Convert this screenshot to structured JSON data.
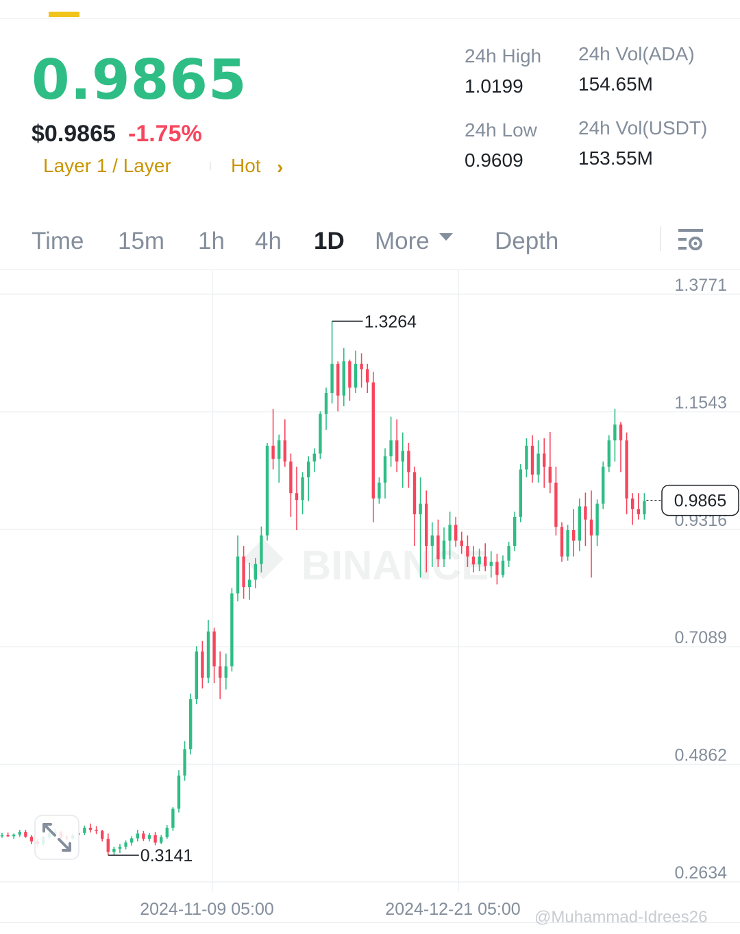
{
  "ticker": {
    "last_price": "0.9865",
    "usd_price": "$0.9865",
    "change_pct": "-1.75%",
    "tags": [
      "Layer 1 / Layer",
      "Hot"
    ],
    "colors": {
      "up": "#2ebd85",
      "down": "#f6465d",
      "tag": "#c99400",
      "accent": "#f0c41b"
    }
  },
  "stats": {
    "high_label": "24h High",
    "high_value": "1.0199",
    "low_label": "24h Low",
    "low_value": "0.9609",
    "vol_base_label": "24h Vol(ADA)",
    "vol_base_value": "154.65M",
    "vol_quote_label": "24h Vol(USDT)",
    "vol_quote_value": "153.55M"
  },
  "tabs": {
    "time": "Time",
    "m15": "15m",
    "h1": "1h",
    "h4": "4h",
    "d1": "1D",
    "more": "More",
    "depth": "Depth",
    "active": "1D",
    "settings_icon": "chart-settings-icon"
  },
  "chart_data": {
    "type": "candlestick",
    "interval": "1D",
    "y_ticks": [
      "1.3771",
      "1.1543",
      "0.9316",
      "0.7089",
      "0.4862",
      "0.2634"
    ],
    "ylim": [
      0.2634,
      1.3771
    ],
    "x_ticks": [
      "2024-11-09 05:00",
      "2024-12-21 05:00"
    ],
    "max_label": "1.3264",
    "min_label": "0.3141",
    "last_price_label": "0.9865",
    "grid": true,
    "watermark": "BINANCE",
    "candles": [
      [
        0.351,
        0.356,
        0.347,
        0.352
      ],
      [
        0.352,
        0.357,
        0.348,
        0.35
      ],
      [
        0.35,
        0.355,
        0.345,
        0.353
      ],
      [
        0.353,
        0.362,
        0.349,
        0.358
      ],
      [
        0.358,
        0.362,
        0.347,
        0.349
      ],
      [
        0.349,
        0.352,
        0.335,
        0.34
      ],
      [
        0.34,
        0.345,
        0.33,
        0.335
      ],
      [
        0.335,
        0.35,
        0.332,
        0.348
      ],
      [
        0.348,
        0.36,
        0.344,
        0.355
      ],
      [
        0.355,
        0.364,
        0.35,
        0.358
      ],
      [
        0.358,
        0.36,
        0.344,
        0.348
      ],
      [
        0.348,
        0.352,
        0.342,
        0.346
      ],
      [
        0.346,
        0.355,
        0.343,
        0.352
      ],
      [
        0.352,
        0.36,
        0.348,
        0.356
      ],
      [
        0.356,
        0.37,
        0.352,
        0.366
      ],
      [
        0.366,
        0.374,
        0.357,
        0.362
      ],
      [
        0.362,
        0.369,
        0.354,
        0.36
      ],
      [
        0.36,
        0.362,
        0.34,
        0.345
      ],
      [
        0.345,
        0.355,
        0.314,
        0.32
      ],
      [
        0.32,
        0.33,
        0.314,
        0.326
      ],
      [
        0.326,
        0.335,
        0.318,
        0.33
      ],
      [
        0.33,
        0.342,
        0.325,
        0.338
      ],
      [
        0.338,
        0.35,
        0.332,
        0.346
      ],
      [
        0.346,
        0.362,
        0.34,
        0.355
      ],
      [
        0.355,
        0.36,
        0.341,
        0.345
      ],
      [
        0.345,
        0.356,
        0.34,
        0.352
      ],
      [
        0.352,
        0.358,
        0.333,
        0.338
      ],
      [
        0.338,
        0.352,
        0.335,
        0.348
      ],
      [
        0.348,
        0.371,
        0.345,
        0.366
      ],
      [
        0.366,
        0.405,
        0.36,
        0.402
      ],
      [
        0.402,
        0.475,
        0.395,
        0.465
      ],
      [
        0.465,
        0.53,
        0.455,
        0.515
      ],
      [
        0.515,
        0.62,
        0.505,
        0.61
      ],
      [
        0.61,
        0.71,
        0.6,
        0.7
      ],
      [
        0.7,
        0.72,
        0.63,
        0.65
      ],
      [
        0.65,
        0.76,
        0.64,
        0.738
      ],
      [
        0.738,
        0.745,
        0.64,
        0.672
      ],
      [
        0.672,
        0.7,
        0.61,
        0.65
      ],
      [
        0.65,
        0.696,
        0.628,
        0.672
      ],
      [
        0.672,
        0.82,
        0.662,
        0.81
      ],
      [
        0.81,
        0.92,
        0.795,
        0.88
      ],
      [
        0.88,
        0.9,
        0.8,
        0.822
      ],
      [
        0.822,
        0.868,
        0.798,
        0.836
      ],
      [
        0.836,
        0.877,
        0.82,
        0.866
      ],
      [
        0.866,
        0.937,
        0.85,
        0.92
      ],
      [
        0.92,
        1.095,
        0.91,
        1.09
      ],
      [
        1.09,
        1.16,
        1.045,
        1.065
      ],
      [
        1.065,
        1.111,
        1.02,
        1.1
      ],
      [
        1.1,
        1.14,
        1.05,
        1.06
      ],
      [
        1.06,
        1.075,
        0.955,
        1.0
      ],
      [
        1.0,
        1.05,
        0.93,
        0.987
      ],
      [
        0.987,
        1.04,
        0.96,
        1.03
      ],
      [
        1.03,
        1.07,
        0.985,
        1.06
      ],
      [
        1.06,
        1.085,
        1.04,
        1.075
      ],
      [
        1.075,
        1.155,
        1.065,
        1.15
      ],
      [
        1.15,
        1.2,
        1.12,
        1.19
      ],
      [
        1.19,
        1.326,
        1.17,
        1.245
      ],
      [
        1.245,
        1.25,
        1.155,
        1.185
      ],
      [
        1.185,
        1.275,
        1.165,
        1.25
      ],
      [
        1.25,
        1.253,
        1.175,
        1.2
      ],
      [
        1.2,
        1.27,
        1.19,
        1.245
      ],
      [
        1.245,
        1.265,
        1.2,
        1.235
      ],
      [
        1.235,
        1.245,
        1.19,
        1.21
      ],
      [
        1.21,
        1.23,
        0.945,
        0.99
      ],
      [
        0.99,
        1.03,
        0.98,
        1.02
      ],
      [
        1.02,
        1.085,
        0.99,
        1.07
      ],
      [
        1.07,
        1.145,
        1.05,
        1.1
      ],
      [
        1.1,
        1.14,
        1.04,
        1.06
      ],
      [
        1.06,
        1.115,
        1.01,
        1.08
      ],
      [
        1.08,
        1.095,
        1.01,
        1.04
      ],
      [
        1.04,
        1.05,
        0.9,
        0.96
      ],
      [
        0.96,
        1.03,
        0.84,
        0.98
      ],
      [
        0.98,
        1.005,
        0.85,
        0.9
      ],
      [
        0.9,
        0.945,
        0.86,
        0.92
      ],
      [
        0.92,
        0.95,
        0.86,
        0.875
      ],
      [
        0.875,
        0.935,
        0.86,
        0.91
      ],
      [
        0.91,
        0.965,
        0.875,
        0.94
      ],
      [
        0.94,
        0.955,
        0.898,
        0.91
      ],
      [
        0.91,
        0.927,
        0.885,
        0.9
      ],
      [
        0.9,
        0.92,
        0.86,
        0.88
      ],
      [
        0.88,
        0.9,
        0.85,
        0.865
      ],
      [
        0.865,
        0.895,
        0.852,
        0.88
      ],
      [
        0.88,
        0.905,
        0.852,
        0.862
      ],
      [
        0.862,
        0.89,
        0.84,
        0.87
      ],
      [
        0.87,
        0.885,
        0.827,
        0.845
      ],
      [
        0.845,
        0.882,
        0.84,
        0.872
      ],
      [
        0.872,
        0.908,
        0.86,
        0.9
      ],
      [
        0.9,
        0.965,
        0.89,
        0.955
      ],
      [
        0.955,
        1.055,
        0.945,
        1.045
      ],
      [
        1.045,
        1.104,
        1.03,
        1.09
      ],
      [
        1.09,
        1.11,
        1.02,
        1.035
      ],
      [
        1.035,
        1.1,
        1.02,
        1.075
      ],
      [
        1.075,
        1.104,
        1.01,
        1.05
      ],
      [
        1.05,
        1.116,
        1.0,
        1.02
      ],
      [
        1.02,
        1.05,
        0.92,
        0.936
      ],
      [
        0.936,
        0.945,
        0.87,
        0.88
      ],
      [
        0.88,
        0.94,
        0.872,
        0.93
      ],
      [
        0.93,
        0.97,
        0.88,
        0.91
      ],
      [
        0.91,
        0.99,
        0.89,
        0.975
      ],
      [
        0.975,
        1.001,
        0.9,
        0.95
      ],
      [
        0.95,
        1.005,
        0.84,
        0.92
      ],
      [
        0.92,
        0.988,
        0.9,
        0.98
      ],
      [
        0.98,
        1.06,
        0.97,
        1.05
      ],
      [
        1.05,
        1.11,
        1.04,
        1.1
      ],
      [
        1.1,
        1.16,
        1.06,
        1.13
      ],
      [
        1.13,
        1.135,
        1.04,
        1.1
      ],
      [
        1.1,
        1.115,
        0.96,
        0.99
      ],
      [
        0.99,
        1.0,
        0.94,
        0.97
      ],
      [
        0.97,
        1.0,
        0.95,
        0.96
      ],
      [
        0.96,
        1.0,
        0.95,
        0.985
      ]
    ]
  },
  "footer": {
    "watermark_user": "@Muhammad-Idrees26",
    "expand_icon": "expand-arrows-icon"
  }
}
